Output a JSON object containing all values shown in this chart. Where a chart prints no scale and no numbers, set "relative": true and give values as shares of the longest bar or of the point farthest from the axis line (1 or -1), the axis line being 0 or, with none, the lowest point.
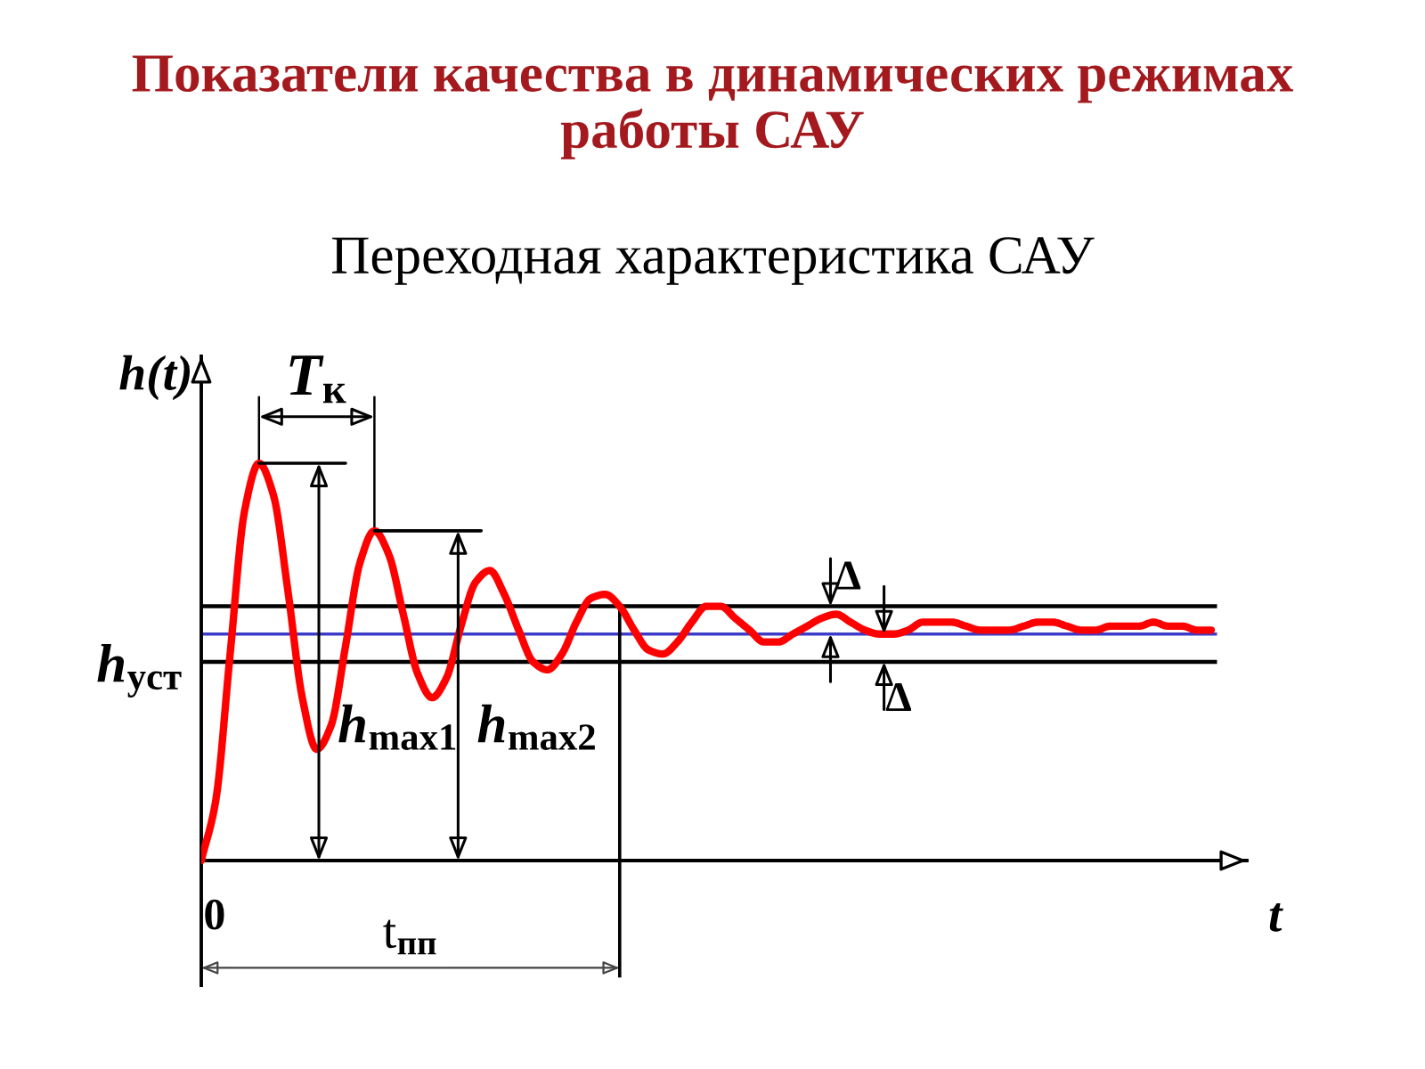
{
  "chart_data": {
    "type": "line",
    "title": "Показатели качества в динамических режимах\nработы САУ",
    "subtitle": "Переходная характеристика САУ",
    "xlabel": "t",
    "ylabel": "h(t)",
    "relative": true,
    "categories": [
      null,
      null,
      null,
      null,
      null,
      null,
      null,
      null,
      null,
      null,
      null,
      null,
      null,
      null,
      null,
      null,
      null,
      null,
      null,
      null,
      null,
      null,
      null,
      null,
      null,
      null,
      null,
      null,
      null,
      null,
      null,
      null,
      null,
      null,
      null,
      null,
      null,
      null,
      null,
      null,
      null,
      null,
      null,
      null,
      null,
      null,
      null,
      null,
      null,
      null,
      null,
      null,
      null,
      null,
      null,
      null,
      null,
      null,
      null,
      null,
      null,
      null,
      null,
      null,
      null,
      null,
      null,
      null,
      null,
      null,
      null
    ],
    "series": [
      {
        "color": "#ff0000",
        "values": [
          0,
          0.15,
          0.52,
          0.88,
          1,
          0.92,
          0.68,
          0.41,
          0.28,
          0.34,
          0.54,
          0.75,
          0.83,
          0.77,
          0.62,
          0.47,
          0.41,
          0.46,
          0.59,
          0.7,
          0.73,
          0.67,
          0.58,
          0.5,
          0.48,
          0.52,
          0.6,
          0.66,
          0.67,
          0.64,
          0.58,
          0.53,
          0.52,
          0.55,
          0.6,
          0.64,
          0.64,
          0.61,
          0.58,
          0.55,
          0.55,
          0.57,
          0.59,
          0.61,
          0.62,
          0.6,
          0.58,
          0.57,
          0.57,
          0.58,
          0.6,
          0.6,
          0.6,
          0.59,
          0.58,
          0.58,
          0.58,
          0.59,
          0.6,
          0.6,
          0.59,
          0.58,
          0.58,
          0.59,
          0.59,
          0.59,
          0.6,
          0.59,
          0.59,
          0.58,
          0.58
        ]
      }
    ],
    "ref_lines": [
      {
        "axis": "y",
        "value": 0.57,
        "label": "h$_{уст}$",
        "color": "#3c3cc8"
      },
      {
        "axis": "y",
        "value": 0.64,
        "label": "Δ",
        "color": "#000000"
      },
      {
        "axis": "y",
        "value": 0.5,
        "label": "Δ",
        "color": "#000000"
      }
    ],
    "annotations": [
      "h$_{max1}$",
      "h$_{max2}$",
      "T$_{к}$",
      "t$_{пп}$",
      "0"
    ]
  }
}
